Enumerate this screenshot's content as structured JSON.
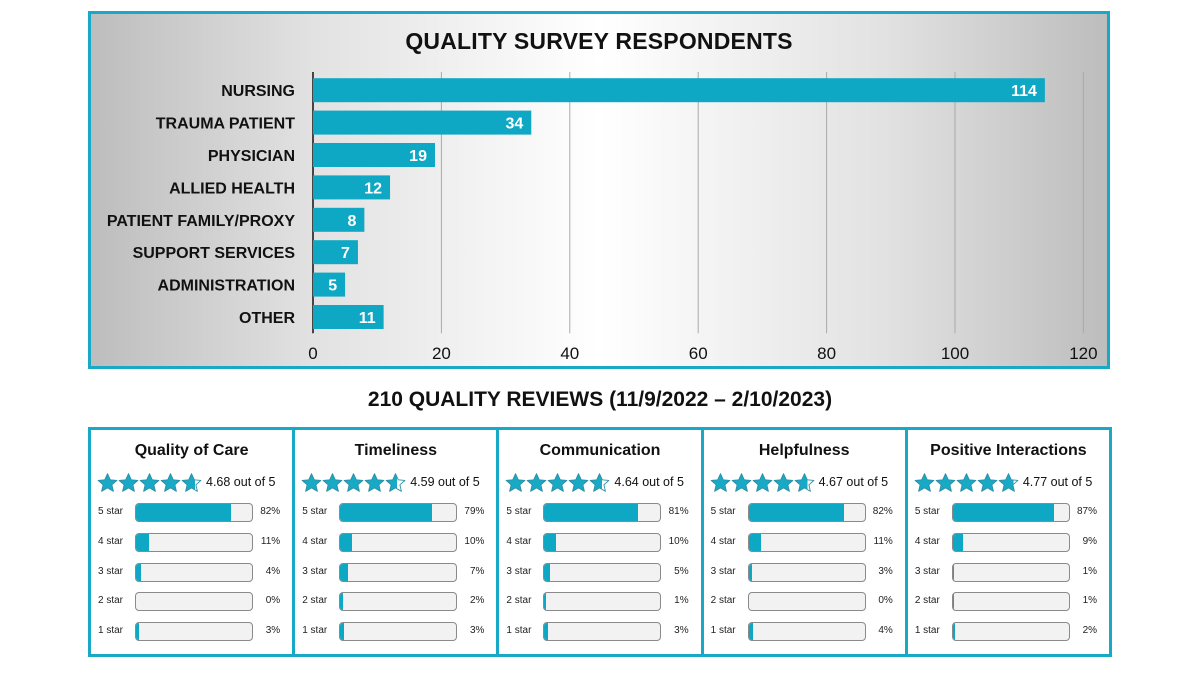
{
  "chart_data": {
    "type": "bar",
    "orientation": "horizontal",
    "title": "QUALITY SURVEY RESPONDENTS",
    "categories": [
      "NURSING",
      "TRAUMA PATIENT",
      "PHYSICIAN",
      "ALLIED HEALTH",
      "PATIENT FAMILY/PROXY",
      "SUPPORT SERVICES",
      "ADMINISTRATION",
      "OTHER"
    ],
    "values": [
      114,
      34,
      19,
      12,
      8,
      7,
      5,
      11
    ],
    "xlim": [
      0,
      120
    ],
    "xticks": [
      0,
      20,
      40,
      60,
      80,
      100,
      120
    ],
    "grid": true,
    "bar_color": "#0ea7c4"
  },
  "reviews": {
    "title": "210 QUALITY REVIEWS (11/9/2022 – 2/10/2023)",
    "accent_color": "#17a9c6",
    "bar_color": "#0ea7c4",
    "star_icon": "star-icon",
    "cards": [
      {
        "title": "Quality of Care",
        "rating": 4.68,
        "rating_text": "4.68 out of 5",
        "dist": [
          {
            "label": "5 star",
            "pct": "82%",
            "value": 82
          },
          {
            "label": "4 star",
            "pct": "11%",
            "value": 11
          },
          {
            "label": "3 star",
            "pct": "4%",
            "value": 4
          },
          {
            "label": "2 star",
            "pct": "0%",
            "value": 0
          },
          {
            "label": "1 star",
            "pct": "3%",
            "value": 3
          }
        ]
      },
      {
        "title": "Timeliness",
        "rating": 4.59,
        "rating_text": "4.59 out of 5",
        "dist": [
          {
            "label": "5 star",
            "pct": "79%",
            "value": 79
          },
          {
            "label": "4 star",
            "pct": "10%",
            "value": 10
          },
          {
            "label": "3 star",
            "pct": "7%",
            "value": 7
          },
          {
            "label": "2 star",
            "pct": "2%",
            "value": 2
          },
          {
            "label": "1 star",
            "pct": "3%",
            "value": 3
          }
        ]
      },
      {
        "title": "Communication",
        "rating": 4.64,
        "rating_text": "4.64 out of 5",
        "dist": [
          {
            "label": "5 star",
            "pct": "81%",
            "value": 81
          },
          {
            "label": "4 star",
            "pct": "10%",
            "value": 10
          },
          {
            "label": "3 star",
            "pct": "5%",
            "value": 5
          },
          {
            "label": "2 star",
            "pct": "1%",
            "value": 1
          },
          {
            "label": "1 star",
            "pct": "3%",
            "value": 3
          }
        ]
      },
      {
        "title": "Helpfulness",
        "rating": 4.67,
        "rating_text": "4.67 out of 5",
        "dist": [
          {
            "label": "5 star",
            "pct": "82%",
            "value": 82
          },
          {
            "label": "4 star",
            "pct": "11%",
            "value": 11
          },
          {
            "label": "3 star",
            "pct": "3%",
            "value": 3
          },
          {
            "label": "2 star",
            "pct": "0%",
            "value": 0
          },
          {
            "label": "1 star",
            "pct": "4%",
            "value": 4
          }
        ]
      },
      {
        "title": "Positive Interactions",
        "rating": 4.77,
        "rating_text": "4.77 out of 5",
        "dist": [
          {
            "label": "5 star",
            "pct": "87%",
            "value": 87
          },
          {
            "label": "4 star",
            "pct": "9%",
            "value": 9
          },
          {
            "label": "3 star",
            "pct": "1%",
            "value": 1
          },
          {
            "label": "2 star",
            "pct": "1%",
            "value": 1
          },
          {
            "label": "1 star",
            "pct": "2%",
            "value": 2
          }
        ]
      }
    ]
  }
}
